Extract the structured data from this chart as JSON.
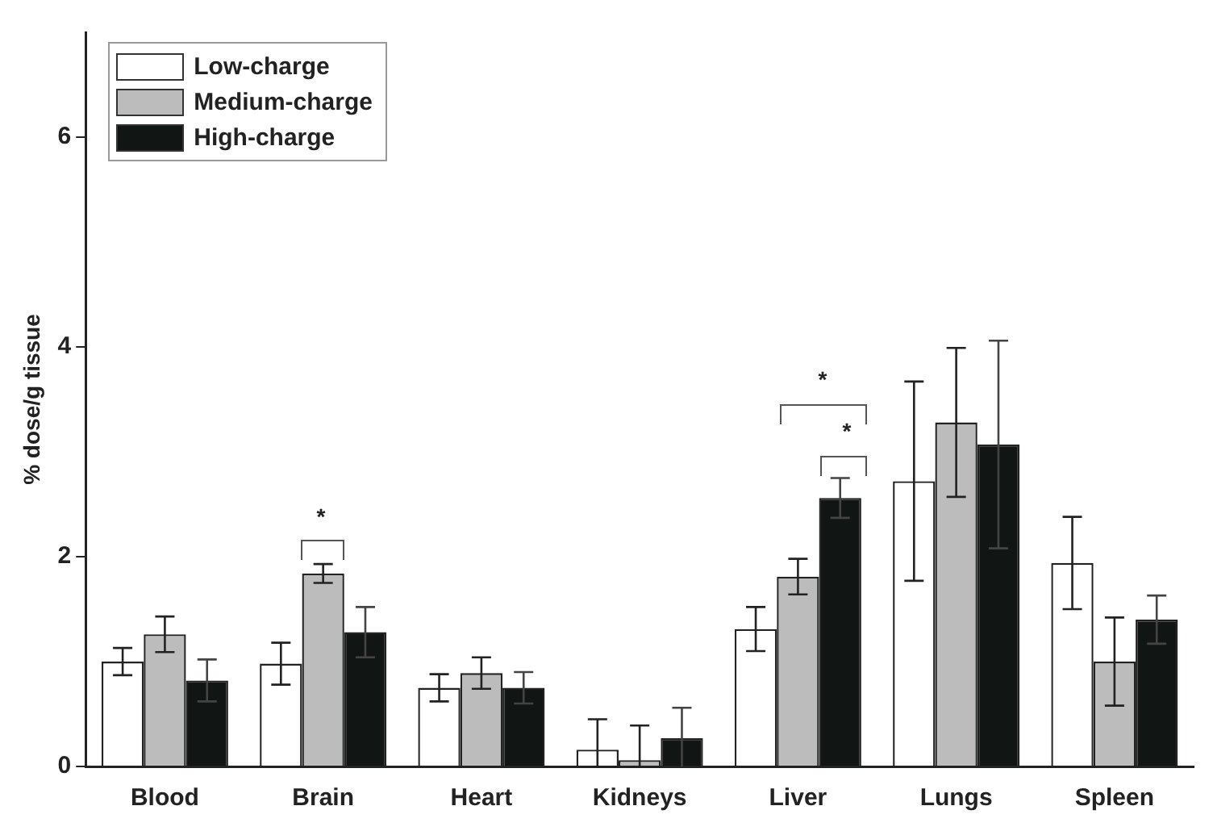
{
  "chart_data": {
    "type": "bar",
    "ylabel": "% dose/g tissue",
    "categories": [
      "Blood",
      "Brain",
      "Heart",
      "Kidneys",
      "Liver",
      "Lungs",
      "Spleen"
    ],
    "series": [
      {
        "name": "Low-charge",
        "color": "#ffffff",
        "values": [
          1.0,
          0.98,
          0.75,
          0.16,
          1.31,
          2.72,
          1.94
        ],
        "errors": [
          0.13,
          0.2,
          0.13,
          0.29,
          0.21,
          0.95,
          0.44
        ]
      },
      {
        "name": "Medium-charge",
        "color": "#bdbcbc",
        "values": [
          1.26,
          1.84,
          0.89,
          0.06,
          1.81,
          3.28,
          1.0
        ],
        "errors": [
          0.17,
          0.09,
          0.15,
          0.33,
          0.17,
          0.71,
          0.42
        ]
      },
      {
        "name": "High-charge",
        "color": "#111614",
        "values": [
          0.82,
          1.28,
          0.75,
          0.27,
          2.56,
          3.07,
          1.4
        ],
        "errors": [
          0.2,
          0.24,
          0.15,
          0.29,
          0.19,
          0.99,
          0.23
        ]
      }
    ],
    "ylim": [
      0,
      7
    ],
    "yticks": [
      0,
      2,
      4,
      6
    ],
    "grid": false,
    "legend": "top left",
    "annotations": [
      "*",
      "*",
      "*"
    ]
  }
}
